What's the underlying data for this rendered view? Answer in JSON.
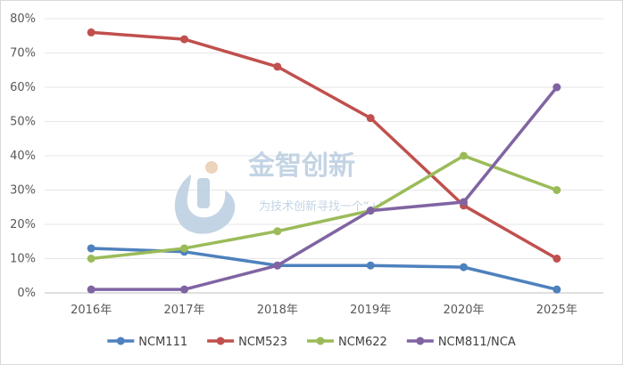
{
  "watermark": {
    "title": "金智创新",
    "subtitle": "为技术创新寻找一个“+”"
  },
  "chart_data": {
    "type": "line",
    "categories": [
      "2016年",
      "2017年",
      "2018年",
      "2019年",
      "2020年",
      "2025年"
    ],
    "ylim": [
      0,
      80
    ],
    "yticks": [
      "0%",
      "10%",
      "20%",
      "30%",
      "40%",
      "50%",
      "60%",
      "70%",
      "80%"
    ],
    "grid": true,
    "legend_position": "bottom",
    "series": [
      {
        "name": "NCM111",
        "color": "#4e81bd",
        "values": [
          13,
          12,
          8,
          8,
          7.5,
          1
        ]
      },
      {
        "name": "NCM523",
        "color": "#c0504d",
        "values": [
          76,
          74,
          66,
          51,
          25.5,
          10
        ]
      },
      {
        "name": "NCM622",
        "color": "#9bbb59",
        "values": [
          10,
          13,
          18,
          24,
          40,
          30
        ]
      },
      {
        "name": "NCM811/NCA",
        "color": "#8064a2",
        "values": [
          1,
          1,
          8,
          24,
          26.5,
          60
        ]
      }
    ]
  }
}
